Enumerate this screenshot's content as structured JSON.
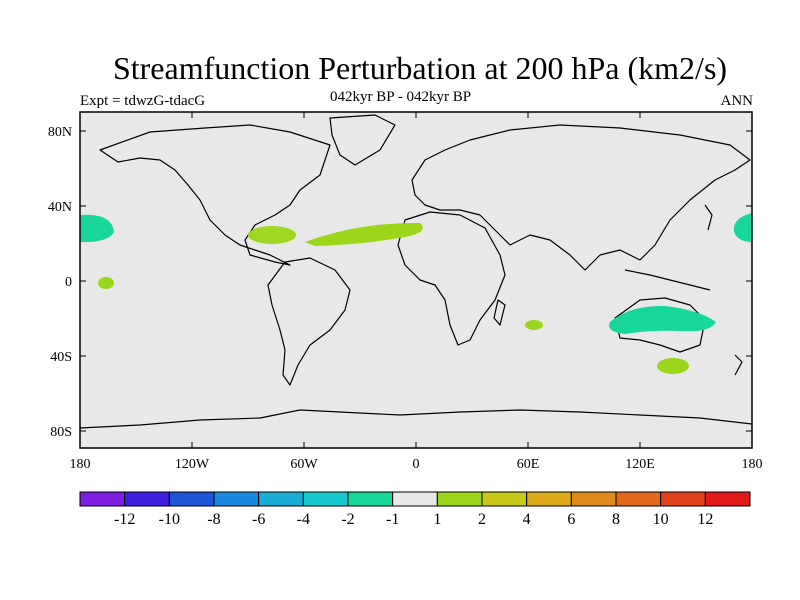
{
  "title": "Streamfunction Perturbation at 200 hPa (km2/s)",
  "left_label": "Expt = tdwzG-tdacG",
  "center_label": "042kyr BP - 042kyr BP",
  "right_label": "ANN",
  "map": {
    "background": "#e8e8e8",
    "lat_ticks": [
      "80N",
      "40N",
      "0",
      "40S",
      "80S"
    ],
    "lon_ticks": [
      "180",
      "120W",
      "60W",
      "0",
      "60E",
      "120E",
      "180"
    ]
  },
  "colorbar": {
    "colors": [
      "#7d1ee0",
      "#3f1ee0",
      "#1e55d6",
      "#1a88dc",
      "#1aacd6",
      "#19c8cf",
      "#19d69a",
      "#e8e8e8",
      "#9bd61a",
      "#c8c81a",
      "#dcaa1a",
      "#e0881a",
      "#e06a1a",
      "#e0401a",
      "#e01a1a"
    ],
    "labels": [
      "-12",
      "-10",
      "-8",
      "-6",
      "-4",
      "-2",
      "-1",
      "1",
      "2",
      "4",
      "6",
      "8",
      "10",
      "12"
    ]
  },
  "features": [
    {
      "name": "positive-anomaly-atlantic",
      "level": "1 to 2",
      "color": "#9bd61a"
    },
    {
      "name": "negative-anomaly-australia",
      "level": "-2 to -1",
      "color": "#19d69a"
    }
  ]
}
